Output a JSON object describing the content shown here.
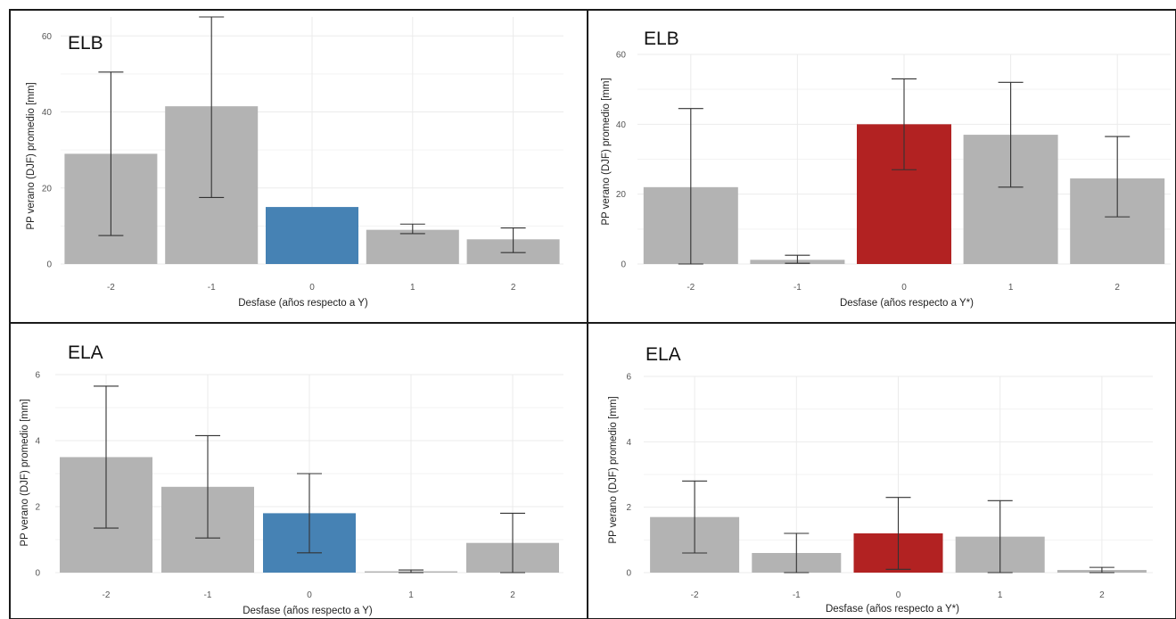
{
  "colors": {
    "bar_default": "#b3b3b3",
    "bar_blue": "#4682b4",
    "bar_red": "#b22222"
  },
  "chart_data": [
    {
      "type": "bar",
      "title": "ELB",
      "xlabel": "Desfase (años respecto a Y)",
      "ylabel": "PP verano (DJF) promedio [mm]",
      "categories": [
        "-2",
        "-1",
        "0",
        "1",
        "2"
      ],
      "values": [
        29,
        41.5,
        15,
        9,
        6.5
      ],
      "error_low": [
        7.5,
        17.5,
        15,
        8,
        3
      ],
      "error_high": [
        50.5,
        65,
        15,
        10.5,
        9.5
      ],
      "highlight_index": 2,
      "highlight_color": "#4682b4",
      "ylim": [
        0,
        65
      ],
      "yticks": [
        0,
        20,
        40,
        60
      ],
      "grid": true
    },
    {
      "type": "bar",
      "title": "ELB",
      "xlabel": "Desfase (años respecto a Y*)",
      "ylabel": "PP verano (DJF) promedio [mm]",
      "categories": [
        "-2",
        "-1",
        "0",
        "1",
        "2"
      ],
      "values": [
        22,
        1.2,
        40,
        37,
        24.5
      ],
      "error_low": [
        0,
        0.2,
        27,
        22,
        13.5
      ],
      "error_high": [
        44.5,
        2.5,
        53,
        52,
        36.5
      ],
      "highlight_index": 2,
      "highlight_color": "#b22222",
      "ylim": [
        0,
        60
      ],
      "yticks": [
        0,
        20,
        40,
        60
      ],
      "grid": true
    },
    {
      "type": "bar",
      "title": "ELA",
      "xlabel": "Desfase (años respecto a Y)",
      "ylabel": "PP verano (DJF) promedio [mm]",
      "categories": [
        "-2",
        "-1",
        "0",
        "1",
        "2"
      ],
      "values": [
        3.5,
        2.6,
        1.8,
        0.04,
        0.9
      ],
      "error_low": [
        1.35,
        1.05,
        0.6,
        0,
        0
      ],
      "error_high": [
        5.65,
        4.15,
        3.0,
        0.08,
        1.8
      ],
      "highlight_index": 2,
      "highlight_color": "#4682b4",
      "ylim": [
        0,
        6
      ],
      "yticks": [
        0,
        2,
        4,
        6
      ],
      "grid": true
    },
    {
      "type": "bar",
      "title": "ELA",
      "xlabel": "Desfase (años respecto a Y*)",
      "ylabel": "PP verano (DJF) promedio [mm]",
      "categories": [
        "-2",
        "-1",
        "0",
        "1",
        "2"
      ],
      "values": [
        1.7,
        0.6,
        1.2,
        1.1,
        0.08
      ],
      "error_low": [
        0.6,
        0,
        0.1,
        0,
        0
      ],
      "error_high": [
        2.8,
        1.2,
        2.3,
        2.2,
        0.16
      ],
      "highlight_index": 2,
      "highlight_color": "#b22222",
      "ylim": [
        0,
        6
      ],
      "yticks": [
        0,
        2,
        4,
        6
      ],
      "grid": true
    }
  ]
}
